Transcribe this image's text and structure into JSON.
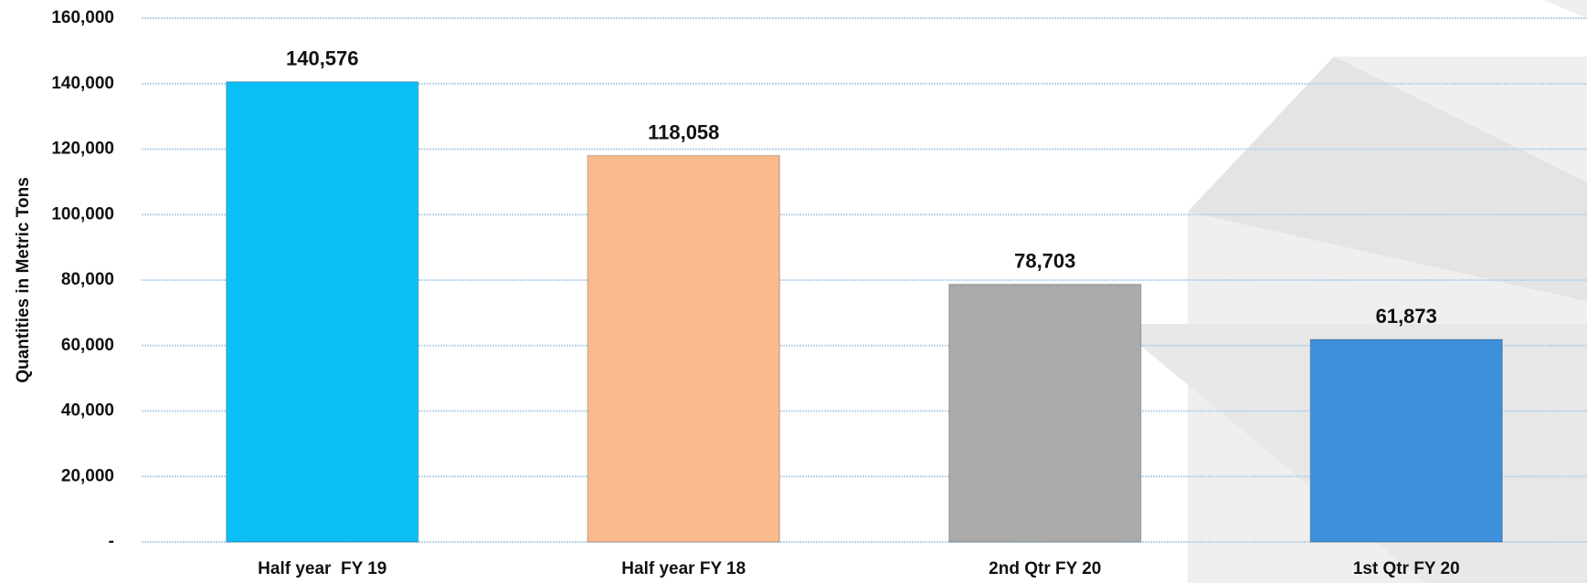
{
  "chart_data": {
    "type": "bar",
    "y_axis_label": "Quantities in Metric Tons",
    "categories": [
      "Half year  FY 19",
      "Half year FY 18",
      "2nd Qtr FY 20",
      "1st Qtr FY 20"
    ],
    "values": [
      140576,
      118058,
      78703,
      61873
    ],
    "value_labels": [
      "140,576",
      "118,058",
      "78,703",
      "61,873"
    ],
    "colors": [
      "#0cbff7",
      "#fbba8b",
      "#ababab",
      "#3d91dc"
    ],
    "ylim": [
      0,
      160000
    ],
    "yticks": [
      {
        "value": 0,
        "label": "-"
      },
      {
        "value": 20000,
        "label": "20,000"
      },
      {
        "value": 40000,
        "label": "40,000"
      },
      {
        "value": 60000,
        "label": "60,000"
      },
      {
        "value": 80000,
        "label": "80,000"
      },
      {
        "value": 100000,
        "label": "100,000"
      },
      {
        "value": 120000,
        "label": "120,000"
      },
      {
        "value": 140000,
        "label": "140,000"
      },
      {
        "value": 160000,
        "label": "160,000"
      }
    ],
    "grid": true
  }
}
